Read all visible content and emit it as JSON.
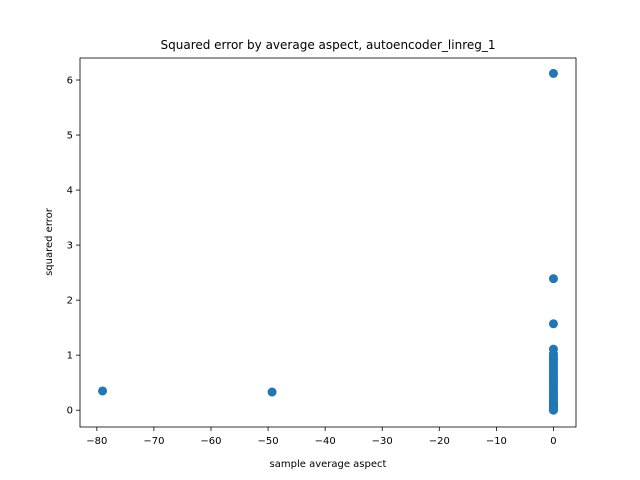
{
  "chart_data": {
    "type": "scatter",
    "title": "Squared error by average aspect, autoencoder_linreg_1",
    "xlabel": "sample average aspect",
    "ylabel": "squared error",
    "xlim": [
      -82.95,
      3.95
    ],
    "ylim": [
      -0.305,
      6.4
    ],
    "xticks": [
      -80,
      -70,
      -60,
      -50,
      -40,
      -30,
      -20,
      -10,
      0
    ],
    "yticks": [
      0,
      1,
      2,
      3,
      4,
      5,
      6
    ],
    "xtick_labels": [
      "−80",
      "−70",
      "−60",
      "−50",
      "−40",
      "−30",
      "−20",
      "−10",
      "0"
    ],
    "ytick_labels": [
      "0",
      "1",
      "2",
      "3",
      "4",
      "5",
      "6"
    ],
    "grid": false,
    "marker_color": "#1f77b4",
    "series": [
      {
        "x": [
          -79,
          -49.3,
          0,
          0,
          0,
          0,
          0,
          0,
          0,
          0,
          0,
          0,
          0,
          0,
          0,
          0,
          0,
          0,
          0,
          0,
          0,
          0,
          0,
          0,
          0,
          0,
          0,
          0,
          0,
          0,
          0,
          0,
          0,
          0,
          0,
          0,
          0,
          0,
          0,
          0,
          0
        ],
        "y": [
          0.35,
          0.33,
          6.12,
          2.39,
          1.57,
          1.11,
          1.02,
          0.97,
          0.93,
          0.89,
          0.85,
          0.81,
          0.77,
          0.73,
          0.69,
          0.65,
          0.61,
          0.57,
          0.53,
          0.49,
          0.45,
          0.41,
          0.37,
          0.33,
          0.29,
          0.26,
          0.23,
          0.2,
          0.17,
          0.14,
          0.12,
          0.1,
          0.08,
          0.06,
          0.05,
          0.04,
          0.03,
          0.02,
          0.01,
          0.005,
          0.0
        ]
      }
    ]
  }
}
